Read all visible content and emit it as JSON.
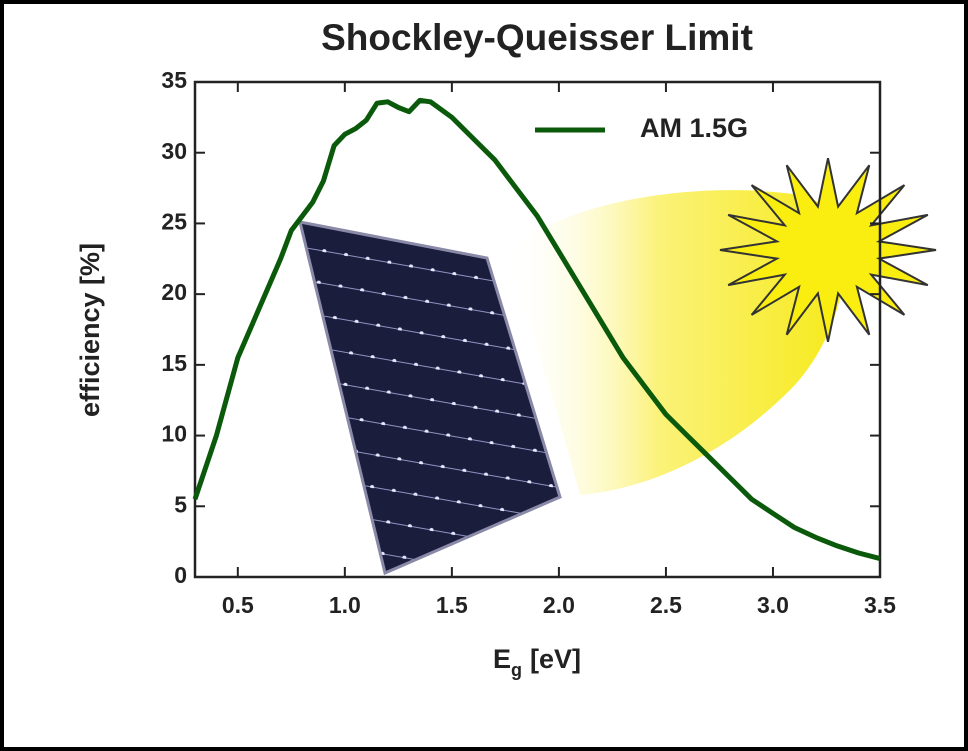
{
  "chart_data": {
    "type": "line",
    "title": "Shockley-Queisser Limit",
    "xlabel": [
      "E",
      "g",
      "[eV]"
    ],
    "ylabel": "efficiency [%]",
    "x": [
      0.3,
      0.4,
      0.5,
      0.6,
      0.7,
      0.75,
      0.8,
      0.85,
      0.9,
      0.95,
      1.0,
      1.05,
      1.1,
      1.15,
      1.2,
      1.25,
      1.3,
      1.35,
      1.4,
      1.5,
      1.6,
      1.7,
      1.8,
      1.9,
      2.0,
      2.1,
      2.2,
      2.3,
      2.4,
      2.5,
      2.6,
      2.7,
      2.8,
      2.9,
      3.0,
      3.1,
      3.2,
      3.3,
      3.4,
      3.5
    ],
    "series": [
      {
        "name": "AM 1.5G",
        "color": "#0b5a0b",
        "values": [
          5.5,
          10,
          15.5,
          19,
          22.5,
          24.5,
          25.5,
          26.5,
          28,
          30.5,
          31.3,
          31.7,
          32.3,
          33.5,
          33.6,
          33.2,
          32.9,
          33.7,
          33.6,
          32.5,
          31,
          29.5,
          27.5,
          25.5,
          23,
          20.5,
          18,
          15.5,
          13.5,
          11.5,
          10,
          8.5,
          7,
          5.5,
          4.5,
          3.5,
          2.8,
          2.2,
          1.7,
          1.3
        ]
      }
    ],
    "xlim": [
      0.3,
      3.5
    ],
    "xticks": [
      0.5,
      {
        "value": 1,
        "label": "1.0"
      },
      1.5,
      {
        "value": 2,
        "label": "2.0"
      },
      2.5,
      {
        "value": 3,
        "label": "3.0"
      },
      3.5
    ],
    "ylim": [
      0,
      35
    ],
    "yticks": [
      0,
      5,
      10,
      15,
      20,
      25,
      30,
      35
    ],
    "legend": "upper right"
  }
}
